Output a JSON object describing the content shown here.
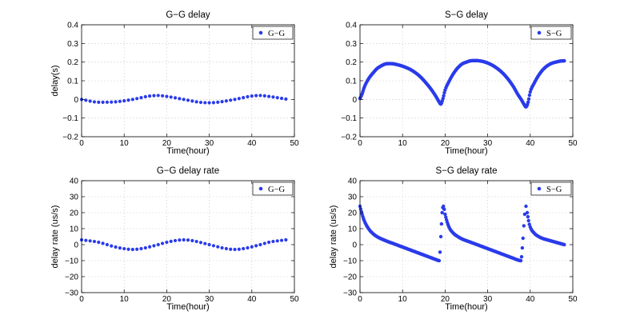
{
  "chart_data": [
    {
      "id": "gg-delay",
      "type": "scatter",
      "title": "G−G delay",
      "xlabel": "Time(hour)",
      "ylabel": "delay(s)",
      "xlim": [
        0,
        50
      ],
      "ylim": [
        -0.2,
        0.4
      ],
      "xticks": [
        0,
        10,
        20,
        30,
        40,
        50
      ],
      "yticks": [
        -0.2,
        -0.1,
        0,
        0.1,
        0.2,
        0.3,
        0.4
      ],
      "ytick_labels": [
        "−0.2",
        "−0.1",
        "0",
        "0.1",
        "0.2",
        "0.3",
        "0.4"
      ],
      "grid": true,
      "legend": "top-right",
      "series": [
        {
          "name": "G−G",
          "color": "#2a3bea",
          "x": [
            0,
            4,
            8,
            12,
            16,
            18,
            20,
            24,
            28,
            30,
            32,
            36,
            40,
            42,
            44,
            48
          ],
          "y": [
            0.0,
            -0.015,
            -0.013,
            0.0,
            0.018,
            0.021,
            0.016,
            0.0,
            -0.016,
            -0.018,
            -0.015,
            0.0,
            0.018,
            0.021,
            0.016,
            0.002
          ]
        }
      ]
    },
    {
      "id": "sg-delay",
      "type": "scatter",
      "title": "S−G delay",
      "xlabel": "Time(hour)",
      "ylabel": "",
      "xlim": [
        0,
        50
      ],
      "ylim": [
        -0.2,
        0.4
      ],
      "xticks": [
        0,
        10,
        20,
        30,
        40,
        50
      ],
      "yticks": [
        -0.2,
        -0.1,
        0,
        0.1,
        0.2,
        0.3,
        0.4
      ],
      "ytick_labels": [
        "−0.2",
        "−0.1",
        "0",
        "0.1",
        "0.2",
        "0.3",
        "0.4"
      ],
      "grid": true,
      "legend": "top-right",
      "series": [
        {
          "name": "S−G",
          "color": "#2a3bea",
          "x": [
            0,
            0.5,
            1,
            2,
            3,
            4,
            5,
            6,
            7,
            8,
            10,
            12,
            14,
            16,
            17,
            18,
            18.5,
            19,
            19.5,
            20,
            21,
            22,
            23,
            24,
            25,
            26,
            27,
            28,
            30,
            32,
            34,
            36,
            37,
            38,
            38.5,
            39,
            39.5,
            40,
            41,
            42,
            43,
            44,
            45,
            46,
            47,
            48
          ],
          "y": [
            0.005,
            0.03,
            0.065,
            0.11,
            0.14,
            0.165,
            0.18,
            0.19,
            0.192,
            0.19,
            0.178,
            0.158,
            0.125,
            0.075,
            0.045,
            0.01,
            -0.01,
            -0.025,
            0.005,
            0.05,
            0.1,
            0.14,
            0.17,
            0.19,
            0.2,
            0.207,
            0.208,
            0.207,
            0.195,
            0.17,
            0.13,
            0.07,
            0.03,
            -0.005,
            -0.025,
            -0.04,
            -0.015,
            0.04,
            0.09,
            0.13,
            0.16,
            0.18,
            0.193,
            0.2,
            0.205,
            0.207
          ]
        }
      ]
    },
    {
      "id": "gg-rate",
      "type": "scatter",
      "title": "G−G delay rate",
      "xlabel": "Time(hour)",
      "ylabel": "delay rate (us/s)",
      "xlim": [
        0,
        50
      ],
      "ylim": [
        -30,
        40
      ],
      "xticks": [
        0,
        10,
        20,
        30,
        40,
        50
      ],
      "yticks": [
        -30,
        -20,
        -10,
        0,
        10,
        20,
        30,
        40
      ],
      "ytick_labels": [
        "−30",
        "−20",
        "−10",
        "0",
        "10",
        "20",
        "30",
        "40"
      ],
      "grid": true,
      "legend": "top-right",
      "series": [
        {
          "name": "G−G",
          "color": "#2a3bea",
          "x": [
            0,
            4,
            6,
            8,
            12,
            14,
            18,
            20,
            24,
            26,
            30,
            34,
            36,
            38,
            42,
            44,
            48
          ],
          "y": [
            3.0,
            1.5,
            0.0,
            -1.5,
            -3.0,
            -2.5,
            0.0,
            1.5,
            3.0,
            2.5,
            0.0,
            -2.5,
            -3.0,
            -2.5,
            0.0,
            1.5,
            3.0
          ]
        }
      ]
    },
    {
      "id": "sg-rate",
      "type": "scatter",
      "title": "S−G delay rate",
      "xlabel": "Time(hour)",
      "ylabel": "delay rate (us/s)",
      "xlim": [
        0,
        50
      ],
      "ylim": [
        -30,
        40
      ],
      "xticks": [
        0,
        10,
        20,
        30,
        40,
        50
      ],
      "yticks": [
        -30,
        -20,
        -10,
        0,
        10,
        20,
        30,
        40
      ],
      "ytick_labels": [
        "−30",
        "−20",
        "−10",
        "0",
        "10",
        "20",
        "30",
        "40"
      ],
      "grid": true,
      "legend": "top-right",
      "series": [
        {
          "name": "S−G",
          "color": "#2a3bea",
          "x": [
            0,
            0.5,
            1,
            2,
            3,
            4,
            6,
            8,
            10,
            12,
            14,
            16,
            17,
            18,
            18.6,
            19.0,
            19.3,
            19.6,
            20,
            20.5,
            21,
            22,
            23,
            24,
            26,
            28,
            30,
            32,
            34,
            36,
            37,
            37.8,
            38.3,
            38.7,
            39.0,
            39.3,
            39.6,
            40,
            41,
            42,
            43,
            44,
            46,
            48
          ],
          "y": [
            24,
            19,
            15,
            10,
            7,
            5,
            2.5,
            0.5,
            -1.5,
            -3.5,
            -5.5,
            -7.5,
            -8.5,
            -9.5,
            -10,
            5,
            20,
            24,
            19,
            14,
            10.5,
            7,
            5,
            3.5,
            1.5,
            -0.5,
            -2.5,
            -4.5,
            -6.5,
            -8.5,
            -9.5,
            -10,
            4,
            19,
            24,
            20,
            15,
            11,
            7,
            5,
            3.8,
            3,
            1.5,
            0
          ]
        }
      ]
    }
  ]
}
